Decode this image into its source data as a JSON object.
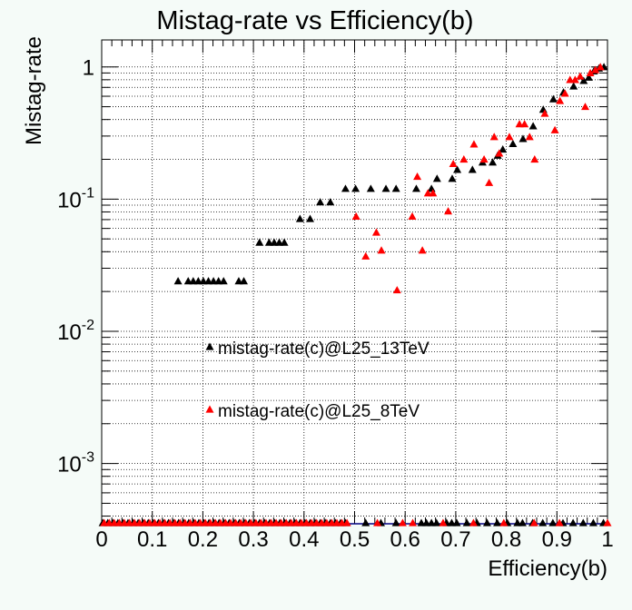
{
  "chart_data": {
    "type": "scatter",
    "title": "Mistag-rate vs Efficiency(b)",
    "xlabel": "Efficiency(b)",
    "ylabel": "Mistag-rate",
    "xlim": [
      0,
      1
    ],
    "ylim": [
      0.00035,
      1.6
    ],
    "yscale": "log",
    "grid": true,
    "legend": "inside-center-left",
    "x_ticks": [
      "0",
      "0.1",
      "0.2",
      "0.3",
      "0.4",
      "0.5",
      "0.6",
      "0.7",
      "0.8",
      "0.9",
      "1"
    ],
    "y_ticks": [
      {
        "base": "10",
        "exp": "-3",
        "value": 0.001
      },
      {
        "base": "10",
        "exp": "-2",
        "value": 0.01
      },
      {
        "base": "10",
        "exp": "-1",
        "value": 0.1
      },
      {
        "base": "1",
        "exp": "",
        "value": 1
      }
    ],
    "series": [
      {
        "name": "mistag-rate(c)@L25_13TeV",
        "color": "#000000",
        "marker": "triangle-up",
        "points": [
          [
            0.151,
            0.024
          ],
          [
            0.171,
            0.024
          ],
          [
            0.181,
            0.024
          ],
          [
            0.191,
            0.024
          ],
          [
            0.201,
            0.024
          ],
          [
            0.211,
            0.024
          ],
          [
            0.221,
            0.024
          ],
          [
            0.231,
            0.024
          ],
          [
            0.241,
            0.024
          ],
          [
            0.271,
            0.024
          ],
          [
            0.281,
            0.024
          ],
          [
            0.312,
            0.047
          ],
          [
            0.331,
            0.047
          ],
          [
            0.341,
            0.047
          ],
          [
            0.351,
            0.047
          ],
          [
            0.361,
            0.047
          ],
          [
            0.392,
            0.071
          ],
          [
            0.412,
            0.071
          ],
          [
            0.432,
            0.095
          ],
          [
            0.452,
            0.095
          ],
          [
            0.482,
            0.12
          ],
          [
            0.502,
            0.12
          ],
          [
            0.532,
            0.12
          ],
          [
            0.562,
            0.12
          ],
          [
            0.582,
            0.12
          ],
          [
            0.622,
            0.12
          ],
          [
            0.652,
            0.12
          ],
          [
            0.663,
            0.143
          ],
          [
            0.693,
            0.143
          ],
          [
            0.703,
            0.167
          ],
          [
            0.733,
            0.167
          ],
          [
            0.753,
            0.19
          ],
          [
            0.773,
            0.19
          ],
          [
            0.783,
            0.214
          ],
          [
            0.793,
            0.238
          ],
          [
            0.813,
            0.262
          ],
          [
            0.833,
            0.286
          ],
          [
            0.853,
            0.357
          ],
          [
            0.873,
            0.476
          ],
          [
            0.893,
            0.571
          ],
          [
            0.913,
            0.643
          ],
          [
            0.933,
            0.714
          ],
          [
            0.953,
            0.786
          ],
          [
            0.963,
            0.833
          ],
          [
            0.973,
            0.929
          ],
          [
            0.983,
            0.976
          ],
          [
            0.993,
            1.0
          ]
        ]
      },
      {
        "name": "mistag-rate(c)@L25_8TeV",
        "color": "#ff0000",
        "marker": "triangle-up",
        "points": [
          [
            0.503,
            0.074
          ],
          [
            0.522,
            0.037
          ],
          [
            0.543,
            0.056
          ],
          [
            0.553,
            0.041
          ],
          [
            0.584,
            0.0205
          ],
          [
            0.614,
            0.074
          ],
          [
            0.624,
            0.148
          ],
          [
            0.634,
            0.041
          ],
          [
            0.645,
            0.111
          ],
          [
            0.655,
            0.111
          ],
          [
            0.685,
            0.081
          ],
          [
            0.695,
            0.185
          ],
          [
            0.716,
            0.2
          ],
          [
            0.736,
            0.26
          ],
          [
            0.756,
            0.2
          ],
          [
            0.766,
            0.133
          ],
          [
            0.776,
            0.296
          ],
          [
            0.786,
            0.222
          ],
          [
            0.806,
            0.296
          ],
          [
            0.826,
            0.37
          ],
          [
            0.836,
            0.37
          ],
          [
            0.846,
            0.296
          ],
          [
            0.856,
            0.2
          ],
          [
            0.876,
            0.444
          ],
          [
            0.896,
            0.333
          ],
          [
            0.906,
            0.555
          ],
          [
            0.916,
            0.63
          ],
          [
            0.926,
            0.8
          ],
          [
            0.936,
            0.8
          ],
          [
            0.946,
            0.85
          ],
          [
            0.956,
            0.5
          ],
          [
            0.966,
            0.9
          ],
          [
            0.976,
            0.95
          ],
          [
            0.986,
            1.0
          ]
        ]
      }
    ],
    "zero_points_x": [
      0.002,
      0.012,
      0.022,
      0.032,
      0.042,
      0.052,
      0.062,
      0.072,
      0.082,
      0.092,
      0.102,
      0.112,
      0.122,
      0.132,
      0.142,
      0.152,
      0.162,
      0.172,
      0.182,
      0.192,
      0.202,
      0.212,
      0.222,
      0.232,
      0.242,
      0.252,
      0.262,
      0.272,
      0.282,
      0.292,
      0.302,
      0.312,
      0.322,
      0.332,
      0.342,
      0.352,
      0.362,
      0.372,
      0.382,
      0.392,
      0.402,
      0.412,
      0.422,
      0.432,
      0.442,
      0.452,
      0.462,
      0.472,
      0.482,
      0.522,
      0.552,
      0.582,
      0.632,
      0.642,
      0.652,
      0.662,
      0.682,
      0.692,
      0.702,
      0.722,
      0.742,
      0.762,
      0.782,
      0.802,
      0.822,
      0.832,
      0.852,
      0.872,
      0.892,
      0.912,
      0.932,
      0.952,
      0.972,
      0.992
    ],
    "zero_points_x_red": [
      0.005,
      0.015,
      0.025,
      0.035,
      0.045,
      0.055,
      0.065,
      0.075,
      0.085,
      0.095,
      0.105,
      0.115,
      0.125,
      0.135,
      0.145,
      0.155,
      0.165,
      0.175,
      0.185,
      0.195,
      0.205,
      0.215,
      0.225,
      0.235,
      0.245,
      0.255,
      0.265,
      0.275,
      0.285,
      0.295,
      0.305,
      0.315,
      0.325,
      0.335,
      0.345,
      0.355,
      0.365,
      0.375,
      0.385,
      0.395,
      0.405,
      0.415,
      0.425,
      0.435,
      0.445,
      0.455,
      0.465,
      0.475,
      0.485,
      0.545,
      0.595,
      0.615,
      0.675,
      0.735,
      0.795,
      0.855,
      0.905,
      1.0
    ]
  }
}
